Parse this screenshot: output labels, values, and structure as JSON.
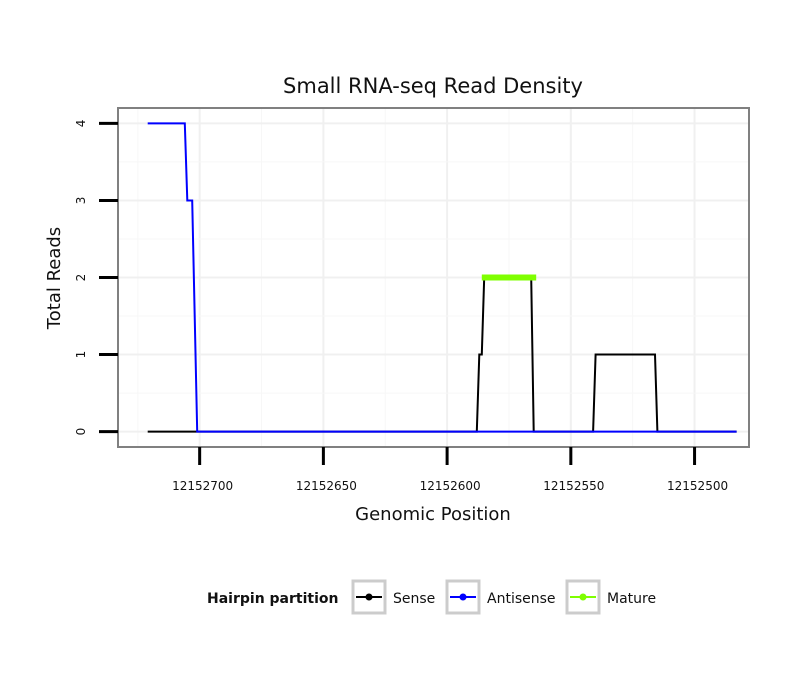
{
  "chart_data": {
    "type": "line",
    "title": "Small RNA-seq Read Density",
    "xlabel": "Genomic Position",
    "ylabel": "Total Reads",
    "xlim": [
      12152733,
      12152478
    ],
    "xreversed": true,
    "ylim": [
      -0.2,
      4.2
    ],
    "xticks": [
      12152700,
      12152650,
      12152600,
      12152550,
      12152500
    ],
    "xtick_labels": [
      "12152700",
      "12152650",
      "12152600",
      "12152550",
      "12152500"
    ],
    "yticks": [
      0,
      1,
      2,
      3,
      4
    ],
    "ytick_labels": [
      "0",
      "1",
      "2",
      "3",
      "4"
    ],
    "grid": true,
    "legend": {
      "title": "Hairpin partition",
      "position": "bottom",
      "entries": [
        "Sense",
        "Antisense",
        "Mature"
      ]
    },
    "series": [
      {
        "name": "Sense",
        "color": "#000000",
        "points": [
          [
            12152721,
            0
          ],
          [
            12152588,
            0
          ],
          [
            12152587,
            1
          ],
          [
            12152586,
            1
          ],
          [
            12152585,
            2
          ],
          [
            12152566,
            2
          ],
          [
            12152565,
            0
          ],
          [
            12152541,
            0
          ],
          [
            12152540,
            1
          ],
          [
            12152516,
            1
          ],
          [
            12152515,
            0
          ],
          [
            12152483,
            0
          ]
        ]
      },
      {
        "name": "Antisense",
        "color": "#0000ff",
        "points": [
          [
            12152721,
            4
          ],
          [
            12152706,
            4
          ],
          [
            12152705,
            3
          ],
          [
            12152703,
            3
          ],
          [
            12152701,
            0
          ],
          [
            12152483,
            0
          ]
        ]
      },
      {
        "name": "Mature",
        "color": "#7fff00",
        "points": [
          [
            12152586,
            2
          ],
          [
            12152564,
            2
          ]
        ]
      }
    ]
  }
}
